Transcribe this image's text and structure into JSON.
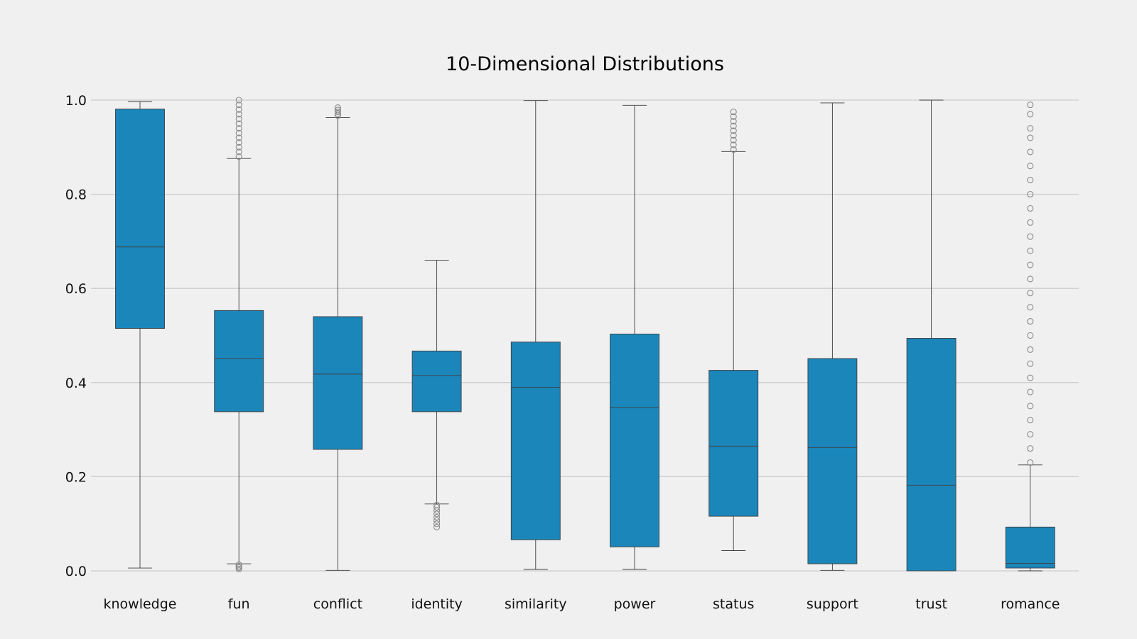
{
  "chart_data": {
    "type": "box",
    "title": "10-Dimensional Distributions",
    "xlabel": "",
    "ylabel": "",
    "ylim": [
      0.0,
      1.0
    ],
    "yticks": [
      0.0,
      0.2,
      0.4,
      0.6,
      0.8,
      1.0
    ],
    "ytick_labels": [
      "0.0",
      "0.2",
      "0.4",
      "0.6",
      "0.8",
      "1.0"
    ],
    "grid": "horizontal",
    "box_color": "#1b86ba",
    "background_color": "#f0f0f0",
    "categories": [
      "knowledge",
      "fun",
      "conflict",
      "identity",
      "similarity",
      "power",
      "status",
      "support",
      "trust",
      "romance"
    ],
    "boxes": [
      {
        "name": "knowledge",
        "whisker_low": 0.006,
        "q1": 0.515,
        "median": 0.688,
        "q3": 0.981,
        "whisker_high": 0.997,
        "outliers_low": [],
        "outliers_high": []
      },
      {
        "name": "fun",
        "whisker_low": 0.015,
        "q1": 0.338,
        "median": 0.451,
        "q3": 0.553,
        "whisker_high": 0.876,
        "outliers_low": [
          0.004,
          0.007,
          0.01,
          0.013
        ],
        "outliers_high": [
          0.88,
          0.89,
          0.9,
          0.91,
          0.92,
          0.93,
          0.94,
          0.95,
          0.96,
          0.97,
          0.98,
          0.99,
          1.0
        ]
      },
      {
        "name": "conflict",
        "whisker_low": 0.001,
        "q1": 0.258,
        "median": 0.418,
        "q3": 0.54,
        "whisker_high": 0.963,
        "outliers_low": [],
        "outliers_high": [
          0.967,
          0.971,
          0.975,
          0.979,
          0.984
        ]
      },
      {
        "name": "identity",
        "whisker_low": 0.142,
        "q1": 0.338,
        "median": 0.415,
        "q3": 0.467,
        "whisker_high": 0.66,
        "outliers_low": [
          0.093,
          0.1,
          0.107,
          0.114,
          0.121,
          0.128,
          0.135,
          0.14
        ],
        "outliers_high": []
      },
      {
        "name": "similarity",
        "whisker_low": 0.003,
        "q1": 0.066,
        "median": 0.39,
        "q3": 0.486,
        "whisker_high": 0.999,
        "outliers_low": [],
        "outliers_high": []
      },
      {
        "name": "power",
        "whisker_low": 0.003,
        "q1": 0.051,
        "median": 0.347,
        "q3": 0.503,
        "whisker_high": 0.989,
        "outliers_low": [],
        "outliers_high": []
      },
      {
        "name": "status",
        "whisker_low": 0.043,
        "q1": 0.116,
        "median": 0.265,
        "q3": 0.426,
        "whisker_high": 0.891,
        "outliers_low": [],
        "outliers_high": [
          0.895,
          0.905,
          0.915,
          0.925,
          0.935,
          0.945,
          0.955,
          0.965,
          0.975
        ]
      },
      {
        "name": "support",
        "whisker_low": 0.001,
        "q1": 0.015,
        "median": 0.262,
        "q3": 0.451,
        "whisker_high": 0.994,
        "outliers_low": [],
        "outliers_high": []
      },
      {
        "name": "trust",
        "whisker_low": 0.0,
        "q1": 0.0,
        "median": 0.182,
        "q3": 0.494,
        "whisker_high": 1.0,
        "outliers_low": [],
        "outliers_high": []
      },
      {
        "name": "romance",
        "whisker_low": 0.0,
        "q1": 0.006,
        "median": 0.016,
        "q3": 0.093,
        "whisker_high": 0.225,
        "outliers_low": [],
        "outliers_high": [
          0.23,
          0.26,
          0.29,
          0.32,
          0.35,
          0.38,
          0.41,
          0.44,
          0.47,
          0.5,
          0.53,
          0.56,
          0.59,
          0.62,
          0.65,
          0.68,
          0.71,
          0.74,
          0.77,
          0.8,
          0.83,
          0.86,
          0.89,
          0.92,
          0.94,
          0.97,
          0.99
        ]
      }
    ]
  }
}
